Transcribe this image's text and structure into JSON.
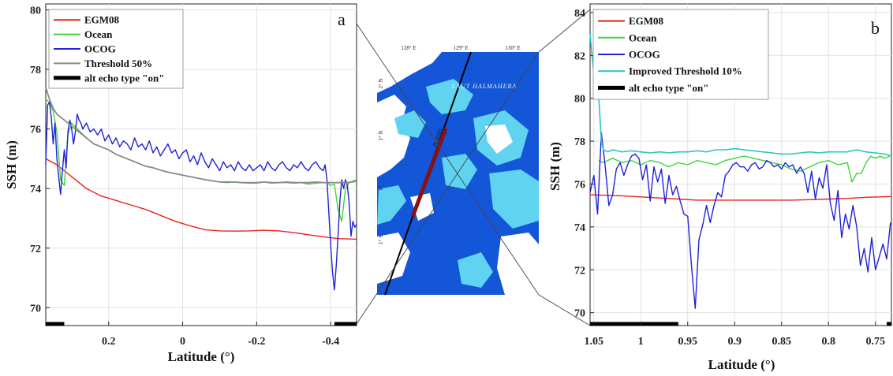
{
  "colors": {
    "egm08": "#e8221c",
    "ocean": "#3fd43a",
    "ocog": "#1f22d6",
    "threshold50": "#8a8a8a",
    "improved10": "#2cc4c4",
    "alt_echo": "#000000",
    "sea_deep": "#1456d8",
    "land": "#ffffff",
    "shallow": "#5fd3f0"
  },
  "map": {
    "lon_labels": [
      "128° E",
      "129° E",
      "130° E"
    ],
    "lat_labels": [
      "2° N",
      "1° N",
      "0°",
      "1° S"
    ],
    "sea_label": "LAUT HALMAHERA",
    "track_label": "IV-P293"
  },
  "chart_data": [
    {
      "type": "line",
      "panel_letter": "a",
      "xlabel": "Latitude (°)",
      "ylabel": "SSH (m)",
      "xlim": [
        0.37,
        -0.47
      ],
      "ylim": [
        69.4,
        80.2
      ],
      "xticks": [
        {
          "v": 0.2,
          "label": "0.2"
        },
        {
          "v": 0,
          "label": "0"
        },
        {
          "v": -0.2,
          "label": "-0.2"
        },
        {
          "v": -0.4,
          "label": "-0.4"
        }
      ],
      "yticks": [
        {
          "v": 70,
          "label": "70"
        },
        {
          "v": 72,
          "label": "72"
        },
        {
          "v": 74,
          "label": "74"
        },
        {
          "v": 76,
          "label": "76"
        },
        {
          "v": 78,
          "label": "78"
        },
        {
          "v": 80,
          "label": "80"
        }
      ],
      "legend_position": "top-left",
      "series": [
        {
          "name": "EGM08",
          "color_key": "egm08",
          "width": 1.4,
          "x": [
            0.37,
            0.34,
            0.3,
            0.26,
            0.22,
            0.18,
            0.14,
            0.1,
            0.06,
            0.02,
            -0.02,
            -0.06,
            -0.1,
            -0.14,
            -0.18,
            -0.22,
            -0.26,
            -0.3,
            -0.34,
            -0.38,
            -0.42,
            -0.47
          ],
          "y": [
            75.0,
            74.8,
            74.4,
            74.0,
            73.75,
            73.6,
            73.45,
            73.3,
            73.1,
            72.9,
            72.75,
            72.62,
            72.58,
            72.57,
            72.58,
            72.6,
            72.58,
            72.52,
            72.45,
            72.38,
            72.32,
            72.3
          ]
        },
        {
          "name": "Ocean",
          "color_key": "ocean",
          "width": 1.4,
          "x": [
            0.37,
            0.36,
            0.35,
            0.34,
            0.33,
            0.32,
            0.31,
            0.3,
            0.28,
            0.26,
            0.24,
            0.22,
            0.2,
            0.18,
            0.16,
            0.14,
            0.12,
            0.1,
            0.08,
            0.06,
            0.04,
            0.02,
            0.0,
            -0.02,
            -0.04,
            -0.06,
            -0.08,
            -0.1,
            -0.12,
            -0.14,
            -0.16,
            -0.18,
            -0.2,
            -0.22,
            -0.24,
            -0.26,
            -0.28,
            -0.3,
            -0.32,
            -0.34,
            -0.36,
            -0.38,
            -0.39,
            -0.4,
            -0.41,
            -0.42,
            -0.43,
            -0.44,
            -0.45,
            -0.46,
            -0.47
          ],
          "y": [
            77.0,
            76.9,
            76.6,
            75.9,
            74.3,
            74.1,
            75.8,
            76.2,
            75.95,
            75.7,
            75.5,
            75.4,
            75.3,
            75.15,
            75.05,
            74.95,
            74.85,
            74.75,
            74.7,
            74.62,
            74.55,
            74.5,
            74.45,
            74.4,
            74.35,
            74.3,
            74.26,
            74.22,
            74.2,
            74.22,
            74.2,
            74.18,
            74.18,
            74.22,
            74.18,
            74.2,
            74.2,
            74.18,
            74.2,
            74.15,
            74.18,
            74.2,
            74.2,
            74.1,
            74.15,
            73.3,
            72.9,
            74.0,
            74.2,
            74.25,
            74.3
          ]
        },
        {
          "name": "OCOG",
          "color_key": "ocog",
          "width": 1.4,
          "x": [
            0.37,
            0.365,
            0.36,
            0.355,
            0.35,
            0.345,
            0.34,
            0.335,
            0.33,
            0.325,
            0.32,
            0.315,
            0.31,
            0.305,
            0.3,
            0.295,
            0.29,
            0.285,
            0.28,
            0.275,
            0.27,
            0.26,
            0.25,
            0.24,
            0.23,
            0.22,
            0.21,
            0.2,
            0.19,
            0.18,
            0.17,
            0.16,
            0.15,
            0.14,
            0.13,
            0.12,
            0.11,
            0.1,
            0.09,
            0.08,
            0.07,
            0.06,
            0.05,
            0.04,
            0.03,
            0.02,
            0.01,
            0.0,
            -0.01,
            -0.02,
            -0.03,
            -0.04,
            -0.05,
            -0.06,
            -0.07,
            -0.08,
            -0.09,
            -0.1,
            -0.11,
            -0.12,
            -0.13,
            -0.14,
            -0.15,
            -0.16,
            -0.17,
            -0.18,
            -0.19,
            -0.2,
            -0.21,
            -0.22,
            -0.23,
            -0.24,
            -0.25,
            -0.26,
            -0.27,
            -0.28,
            -0.29,
            -0.3,
            -0.31,
            -0.32,
            -0.33,
            -0.34,
            -0.35,
            -0.36,
            -0.37,
            -0.38,
            -0.385,
            -0.39,
            -0.395,
            -0.4,
            -0.405,
            -0.41,
            -0.415,
            -0.42,
            -0.425,
            -0.43,
            -0.435,
            -0.44,
            -0.445,
            -0.45,
            -0.455,
            -0.46,
            -0.465,
            -0.47
          ],
          "y": [
            74.8,
            76.8,
            76.9,
            76.4,
            75.5,
            76.2,
            75.0,
            74.4,
            73.8,
            74.6,
            75.3,
            74.7,
            75.9,
            76.3,
            76.0,
            75.5,
            75.9,
            76.5,
            76.3,
            76.2,
            76.0,
            76.2,
            75.9,
            76.0,
            75.8,
            76.0,
            75.6,
            75.8,
            75.5,
            75.7,
            75.4,
            75.6,
            75.5,
            75.3,
            75.7,
            75.4,
            75.5,
            75.3,
            75.6,
            75.2,
            75.4,
            75.1,
            75.3,
            75.5,
            75.2,
            75.3,
            75.0,
            75.2,
            75.3,
            74.9,
            75.1,
            74.8,
            75.2,
            74.9,
            74.7,
            75.0,
            74.8,
            74.6,
            74.9,
            74.7,
            74.8,
            74.6,
            74.9,
            74.7,
            74.6,
            74.8,
            74.6,
            74.7,
            74.8,
            74.6,
            74.9,
            74.7,
            74.6,
            74.8,
            74.9,
            74.7,
            74.6,
            74.8,
            74.7,
            74.9,
            74.7,
            74.6,
            74.8,
            74.9,
            74.7,
            74.6,
            74.8,
            74.3,
            73.2,
            72.1,
            71.2,
            70.6,
            71.4,
            72.4,
            73.6,
            74.3,
            74.0,
            74.3,
            74.1,
            73.5,
            72.4,
            72.9,
            72.7,
            72.8
          ]
        },
        {
          "name": "Threshold 50%",
          "color_key": "threshold50",
          "width": 1.8,
          "x": [
            0.37,
            0.36,
            0.35,
            0.34,
            0.32,
            0.3,
            0.28,
            0.26,
            0.24,
            0.22,
            0.2,
            0.18,
            0.16,
            0.14,
            0.12,
            0.1,
            0.08,
            0.06,
            0.04,
            0.02,
            0.0,
            -0.02,
            -0.04,
            -0.06,
            -0.08,
            -0.1,
            -0.12,
            -0.14,
            -0.16,
            -0.18,
            -0.2,
            -0.22,
            -0.24,
            -0.26,
            -0.28,
            -0.3,
            -0.32,
            -0.34,
            -0.36,
            -0.38,
            -0.4,
            -0.42,
            -0.44,
            -0.46,
            -0.47
          ],
          "y": [
            77.4,
            77.0,
            76.7,
            76.5,
            76.3,
            76.1,
            75.9,
            75.7,
            75.5,
            75.4,
            75.3,
            75.15,
            75.05,
            74.95,
            74.85,
            74.75,
            74.7,
            74.62,
            74.55,
            74.5,
            74.45,
            74.4,
            74.35,
            74.3,
            74.26,
            74.22,
            74.22,
            74.22,
            74.2,
            74.2,
            74.2,
            74.22,
            74.2,
            74.2,
            74.22,
            74.2,
            74.2,
            74.2,
            74.22,
            74.2,
            74.2,
            74.2,
            74.2,
            74.22,
            74.25
          ]
        }
      ],
      "alt_echo": {
        "name": "alt echo type \"on\"",
        "color_key": "alt_echo",
        "segments": [
          [
            0.37,
            0.32
          ],
          [
            -0.41,
            -0.47
          ]
        ]
      }
    },
    {
      "type": "line",
      "panel_letter": "b",
      "xlabel": "Latitude (°)",
      "ylabel": "SSH (m)",
      "xlim": [
        1.054,
        0.733
      ],
      "ylim": [
        69.4,
        84.4
      ],
      "xticks": [
        {
          "v": 1.05,
          "label": "1.05"
        },
        {
          "v": 1.0,
          "label": "1"
        },
        {
          "v": 0.95,
          "label": "0.95"
        },
        {
          "v": 0.9,
          "label": "0.9"
        },
        {
          "v": 0.85,
          "label": "0.85"
        },
        {
          "v": 0.8,
          "label": "0.8"
        },
        {
          "v": 0.75,
          "label": "0.75"
        }
      ],
      "yticks": [
        {
          "v": 70,
          "label": "70"
        },
        {
          "v": 72,
          "label": "72"
        },
        {
          "v": 74,
          "label": "74"
        },
        {
          "v": 76,
          "label": "76"
        },
        {
          "v": 78,
          "label": "78"
        },
        {
          "v": 80,
          "label": "80"
        },
        {
          "v": 82,
          "label": "82"
        },
        {
          "v": 84,
          "label": "84"
        }
      ],
      "legend_position": "top-left",
      "series": [
        {
          "name": "EGM08",
          "color_key": "egm08",
          "width": 1.4,
          "x": [
            1.054,
            1.02,
            1.0,
            0.98,
            0.96,
            0.94,
            0.92,
            0.9,
            0.88,
            0.86,
            0.84,
            0.82,
            0.8,
            0.78,
            0.76,
            0.733
          ],
          "y": [
            75.5,
            75.45,
            75.4,
            75.35,
            75.3,
            75.25,
            75.25,
            75.25,
            75.25,
            75.25,
            75.25,
            75.27,
            75.3,
            75.33,
            75.38,
            75.42
          ]
        },
        {
          "name": "Ocean",
          "color_key": "ocean",
          "width": 1.4,
          "x": [
            1.045,
            1.04,
            1.03,
            1.02,
            1.01,
            1.0,
            0.99,
            0.98,
            0.97,
            0.96,
            0.95,
            0.94,
            0.93,
            0.92,
            0.91,
            0.9,
            0.89,
            0.88,
            0.87,
            0.86,
            0.85,
            0.84,
            0.83,
            0.82,
            0.81,
            0.8,
            0.79,
            0.78,
            0.775,
            0.77,
            0.765,
            0.76,
            0.755,
            0.75,
            0.745,
            0.74,
            0.735
          ],
          "y": [
            77.1,
            77.0,
            77.2,
            77.0,
            77.1,
            76.9,
            77.1,
            77.0,
            76.8,
            77.0,
            76.9,
            77.1,
            77.0,
            76.9,
            77.1,
            77.2,
            77.3,
            77.2,
            77.1,
            77.0,
            76.9,
            76.7,
            76.6,
            76.8,
            77.0,
            77.1,
            76.9,
            77.0,
            76.1,
            76.5,
            76.5,
            77.0,
            77.3,
            77.2,
            77.3,
            77.2,
            77.3
          ]
        },
        {
          "name": "OCOG",
          "color_key": "ocog",
          "width": 1.4,
          "x": [
            1.054,
            1.05,
            1.046,
            1.042,
            1.038,
            1.034,
            1.03,
            1.026,
            1.022,
            1.018,
            1.014,
            1.01,
            1.006,
            1.002,
            0.998,
            0.994,
            0.99,
            0.986,
            0.982,
            0.978,
            0.974,
            0.97,
            0.966,
            0.962,
            0.958,
            0.954,
            0.95,
            0.946,
            0.942,
            0.938,
            0.934,
            0.93,
            0.926,
            0.922,
            0.918,
            0.914,
            0.91,
            0.906,
            0.902,
            0.898,
            0.894,
            0.89,
            0.886,
            0.882,
            0.878,
            0.874,
            0.87,
            0.866,
            0.862,
            0.858,
            0.854,
            0.85,
            0.846,
            0.842,
            0.838,
            0.834,
            0.83,
            0.826,
            0.822,
            0.818,
            0.814,
            0.81,
            0.806,
            0.802,
            0.798,
            0.794,
            0.79,
            0.786,
            0.782,
            0.778,
            0.774,
            0.77,
            0.766,
            0.762,
            0.758,
            0.754,
            0.75,
            0.746,
            0.742,
            0.738,
            0.734
          ],
          "y": [
            75.6,
            76.4,
            74.6,
            78.4,
            76.9,
            75.0,
            75.5,
            76.7,
            77.0,
            76.4,
            76.9,
            77.3,
            77.4,
            77.2,
            76.2,
            76.9,
            75.2,
            76.8,
            76.1,
            76.7,
            75.1,
            76.4,
            75.5,
            75.9,
            75.2,
            74.6,
            74.5,
            72.2,
            70.2,
            73.4,
            74.1,
            75.0,
            74.2,
            75.0,
            75.6,
            75.4,
            76.4,
            76.6,
            76.9,
            77.0,
            76.8,
            76.8,
            76.6,
            76.9,
            77.0,
            76.7,
            76.8,
            77.1,
            77.0,
            76.8,
            76.9,
            76.7,
            77.0,
            76.8,
            76.9,
            76.5,
            76.8,
            76.5,
            75.6,
            76.6,
            75.3,
            76.3,
            75.8,
            76.9,
            75.1,
            74.3,
            75.7,
            73.5,
            74.6,
            73.9,
            75.0,
            74.0,
            72.2,
            73.0,
            71.9,
            73.5,
            72.0,
            72.6,
            73.2,
            72.5,
            74.2
          ]
        },
        {
          "name": "Improved Threshold 10%",
          "color_key": "improved10",
          "width": 1.6,
          "x": [
            1.054,
            1.052,
            1.05,
            1.048,
            1.046,
            1.044,
            1.042,
            1.04,
            1.035,
            1.03,
            1.02,
            1.01,
            1.0,
            0.99,
            0.98,
            0.97,
            0.96,
            0.95,
            0.94,
            0.93,
            0.92,
            0.91,
            0.9,
            0.89,
            0.88,
            0.87,
            0.86,
            0.85,
            0.84,
            0.83,
            0.82,
            0.81,
            0.8,
            0.79,
            0.78,
            0.77,
            0.76,
            0.75,
            0.74,
            0.733
          ],
          "y": [
            83.0,
            82.0,
            81.2,
            80.7,
            80.9,
            79.5,
            78.0,
            77.6,
            77.5,
            77.6,
            77.5,
            77.55,
            77.5,
            77.45,
            77.5,
            77.45,
            77.5,
            77.5,
            77.55,
            77.5,
            77.6,
            77.6,
            77.65,
            77.6,
            77.55,
            77.5,
            77.45,
            77.4,
            77.4,
            77.45,
            77.5,
            77.45,
            77.5,
            77.5,
            77.5,
            77.6,
            77.5,
            77.45,
            77.4,
            77.3
          ]
        }
      ],
      "alt_echo": {
        "name": "alt echo type \"on\"",
        "color_key": "alt_echo",
        "segments": [
          [
            1.054,
            0.96
          ],
          [
            0.738,
            0.733
          ]
        ]
      }
    }
  ]
}
